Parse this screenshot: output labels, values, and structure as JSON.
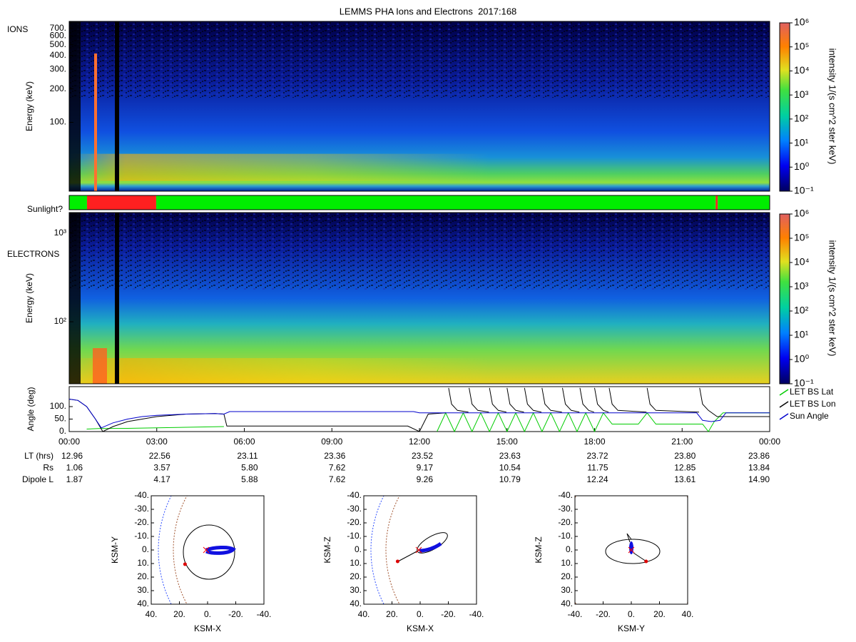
{
  "title": "LEMMS PHA Ions and Electrons  2017:168",
  "chart_data": [
    {
      "type": "spectrogram",
      "panel_label": "IONS",
      "ylabel": "Energy (keV)",
      "ylog": true,
      "ylim": [
        24,
        810
      ],
      "yticks": [
        {
          "value": 100,
          "label": "100."
        },
        {
          "value": 200,
          "label": "200."
        },
        {
          "value": 300,
          "label": "300."
        },
        {
          "value": 400,
          "label": "400."
        },
        {
          "value": 500,
          "label": "500."
        },
        {
          "value": 600,
          "label": "600."
        },
        {
          "value": 700,
          "label": "700."
        }
      ],
      "colorbar": {
        "label": "intensity 1/(s cm^2 ster keV)",
        "zlog": true,
        "zlim": [
          0.1,
          1000000
        ],
        "zticks": [
          {
            "value": 0.1,
            "label": "10⁻¹"
          },
          {
            "value": 1,
            "label": "10⁰"
          },
          {
            "value": 10,
            "label": "10¹"
          },
          {
            "value": 100,
            "label": "10²"
          },
          {
            "value": 1000,
            "label": "10³"
          },
          {
            "value": 10000,
            "label": "10⁴"
          },
          {
            "value": 100000,
            "label": "10⁵"
          },
          {
            "value": 1000000,
            "label": "10⁶"
          }
        ]
      }
    },
    {
      "type": "timeline",
      "label": "Sunlight?",
      "xlim": [
        0,
        24
      ],
      "segments": [
        {
          "x": [
            0,
            0.61
          ],
          "color": "#00ee00"
        },
        {
          "x": [
            0.61,
            2.98
          ],
          "color": "#ff2020"
        },
        {
          "x": [
            2.98,
            22.15
          ],
          "color": "#00ee00"
        },
        {
          "x": [
            22.15,
            22.22
          ],
          "color": "#ff2020"
        },
        {
          "x": [
            22.22,
            24
          ],
          "color": "#00ee00"
        }
      ]
    },
    {
      "type": "spectrogram",
      "panel_label": "ELECTRONS",
      "ylabel": "Energy (keV)",
      "ylog": true,
      "ylim": [
        20,
        1700
      ],
      "yticks": [
        {
          "value": 100,
          "label": "10²"
        },
        {
          "value": 1000,
          "label": "10³"
        }
      ],
      "colorbar": {
        "label": "intensity 1/(s cm^2 ster keV)",
        "zlog": true,
        "zlim": [
          0.1,
          1000000
        ],
        "zticks": [
          {
            "value": 0.1,
            "label": "10⁻¹"
          },
          {
            "value": 1,
            "label": "10⁰"
          },
          {
            "value": 10,
            "label": "10¹"
          },
          {
            "value": 100,
            "label": "10²"
          },
          {
            "value": 1000,
            "label": "10³"
          },
          {
            "value": 10000,
            "label": "10⁴"
          },
          {
            "value": 100000,
            "label": "10⁵"
          },
          {
            "value": 1000000,
            "label": "10⁶"
          }
        ]
      }
    },
    {
      "type": "line",
      "ylabel": "Angle (deg)",
      "xlim": [
        0,
        24
      ],
      "ylim": [
        0,
        180
      ],
      "legend": "right",
      "yticks": [
        {
          "value": 0,
          "label": "0."
        },
        {
          "value": 50,
          "label": "50."
        },
        {
          "value": 100,
          "label": "100."
        }
      ],
      "xticks": [
        {
          "value": 0,
          "label": "00:00"
        },
        {
          "value": 3,
          "label": "03:00"
        },
        {
          "value": 6,
          "label": "06:00"
        },
        {
          "value": 9,
          "label": "09:00"
        },
        {
          "value": 12,
          "label": "12:00"
        },
        {
          "value": 15,
          "label": "15:00"
        },
        {
          "value": 18,
          "label": "18:00"
        },
        {
          "value": 21,
          "label": "21:00"
        },
        {
          "value": 24,
          "label": "00:00"
        }
      ],
      "series": [
        {
          "name": "LET BS Lat",
          "color": "#00cc00",
          "x": [
            0.6,
            1,
            2,
            3,
            4,
            5.3,
            5.31,
            12.6,
            12.9,
            13.2,
            13.5,
            13.8,
            14.1,
            14.4,
            14.7,
            15.0,
            15.3,
            15.6,
            15.9,
            16.2,
            16.5,
            16.8,
            17.1,
            17.4,
            17.7,
            18.0,
            18.3,
            18.6,
            19.5,
            19.8,
            20.1,
            20.4,
            21.7,
            21.9,
            22.1,
            22.4,
            24
          ],
          "values": [
            10,
            12,
            13,
            15,
            17,
            20,
            null,
            0,
            75,
            0,
            75,
            0,
            75,
            0,
            75,
            0,
            75,
            0,
            75,
            0,
            75,
            0,
            75,
            0,
            75,
            0,
            75,
            30,
            30,
            75,
            30,
            30,
            30,
            0,
            40,
            75,
            75
          ]
        },
        {
          "name": "LET BS Lon",
          "color": "#000000",
          "x": [
            0,
            0.3,
            0.6,
            0.9,
            1.15,
            1.5,
            2,
            3,
            4,
            5,
            5.3,
            5.4,
            11.6,
            12.0,
            12.3,
            12.9,
            12.95,
            13.0,
            13.1,
            13.3,
            13.68,
            13.69,
            13.7,
            13.8,
            14.0,
            14.38,
            14.39,
            14.4,
            14.5,
            14.7,
            14.98,
            14.99,
            15.0,
            15.1,
            15.3,
            15.58,
            15.59,
            15.6,
            15.7,
            15.9,
            16.18,
            16.19,
            16.2,
            16.3,
            16.5,
            16.88,
            16.89,
            16.9,
            17.0,
            17.2,
            17.48,
            17.49,
            17.5,
            17.6,
            17.8,
            17.98,
            17.99,
            18.0,
            18.1,
            18.3,
            18.48,
            18.49,
            18.5,
            18.6,
            18.8,
            19.78,
            19.79,
            19.8,
            19.9,
            20.1,
            21.58,
            21.59,
            21.6,
            21.7,
            21.9,
            22.2,
            24
          ],
          "values": [
            130,
            125,
            100,
            50,
            0,
            20,
            40,
            60,
            70,
            72,
            70,
            22,
            22,
            0,
            70,
            75,
            null,
            175,
            110,
            85,
            78,
            null,
            175,
            110,
            85,
            78,
            null,
            175,
            110,
            85,
            78,
            null,
            175,
            110,
            85,
            78,
            null,
            175,
            110,
            85,
            78,
            null,
            175,
            110,
            85,
            78,
            null,
            175,
            110,
            85,
            78,
            null,
            175,
            110,
            85,
            78,
            null,
            175,
            110,
            85,
            78,
            null,
            175,
            110,
            85,
            78,
            null,
            175,
            110,
            85,
            78,
            null,
            175,
            110,
            85,
            60,
            60
          ]
        },
        {
          "name": "Sun Angle",
          "color": "#0000cc",
          "x": [
            0,
            0.3,
            0.6,
            0.9,
            1.1,
            1.5,
            2,
            2.5,
            3,
            4,
            5,
            5.3,
            5.5,
            8,
            11.8,
            12,
            16,
            21.5,
            21.7,
            22,
            22.3,
            22.5,
            24
          ],
          "values": [
            130,
            125,
            100,
            50,
            15,
            35,
            50,
            60,
            65,
            70,
            72,
            70,
            80,
            80,
            80,
            75,
            75,
            75,
            45,
            40,
            45,
            75,
            75
          ]
        }
      ],
      "ephemeris": {
        "rows": [
          {
            "label": "LT (hrs)",
            "values": [
              "12.96",
              "22.56",
              "23.11",
              "23.36",
              "23.52",
              "23.63",
              "23.72",
              "23.80",
              "23.86"
            ]
          },
          {
            "label": "Rs",
            "values": [
              "1.06",
              "3.57",
              "5.80",
              "7.62",
              "9.17",
              "10.54",
              "11.75",
              "12.85",
              "13.84"
            ]
          },
          {
            "label": "Dipole L",
            "values": [
              "1.87",
              "4.17",
              "5.88",
              "7.62",
              "9.26",
              "10.79",
              "12.24",
              "13.61",
              "14.90"
            ]
          }
        ]
      }
    },
    {
      "type": "orbit",
      "xlabel": "KSM-X",
      "ylabel": "KSM-Y",
      "xlim": [
        40,
        -40
      ],
      "ylim": [
        40,
        -40
      ],
      "xticks": [
        {
          "value": 40,
          "label": "40."
        },
        {
          "value": 20,
          "label": "20."
        },
        {
          "value": 0,
          "label": "0."
        },
        {
          "value": -20,
          "label": "-20."
        },
        {
          "value": -40,
          "label": "-40."
        }
      ],
      "yticks": [
        {
          "value": -40,
          "label": "-40."
        },
        {
          "value": -30,
          "label": "-30."
        },
        {
          "value": -20,
          "label": "-20."
        },
        {
          "value": -10,
          "label": "-10."
        },
        {
          "value": 0,
          "label": "0."
        },
        {
          "value": 10,
          "label": "10."
        },
        {
          "value": 20,
          "label": "20."
        },
        {
          "value": 30,
          "label": "30."
        },
        {
          "value": 40,
          "label": "40."
        }
      ],
      "spacecraft": {
        "x": 16,
        "y": 10.5,
        "color": "#dd0000"
      }
    },
    {
      "type": "orbit",
      "xlabel": "KSM-X",
      "ylabel": "KSM-Z",
      "xlim": [
        40,
        -40
      ],
      "ylim": [
        40,
        -40
      ],
      "xticks": [
        {
          "value": 40,
          "label": "40."
        },
        {
          "value": 20,
          "label": "20."
        },
        {
          "value": 0,
          "label": "0."
        },
        {
          "value": -20,
          "label": "-20."
        },
        {
          "value": -40,
          "label": "-40."
        }
      ],
      "yticks": [
        {
          "value": -40,
          "label": "-40."
        },
        {
          "value": -30,
          "label": "-30."
        },
        {
          "value": -20,
          "label": "-20."
        },
        {
          "value": -10,
          "label": "-10."
        },
        {
          "value": 0,
          "label": "0."
        },
        {
          "value": 10,
          "label": "10."
        },
        {
          "value": 20,
          "label": "20."
        },
        {
          "value": 30,
          "label": "30."
        },
        {
          "value": 40,
          "label": "40."
        }
      ],
      "spacecraft": {
        "x": 16,
        "y": 8.4,
        "color": "#dd0000"
      }
    },
    {
      "type": "orbit",
      "xlabel": "KSM-Y",
      "ylabel": "KSM-Z",
      "xlim": [
        -40,
        40
      ],
      "ylim": [
        40,
        -40
      ],
      "xticks": [
        {
          "value": -40,
          "label": "-40."
        },
        {
          "value": -20,
          "label": "-20."
        },
        {
          "value": 0,
          "label": "0."
        },
        {
          "value": 20,
          "label": "20."
        },
        {
          "value": 40,
          "label": "40."
        }
      ],
      "yticks": [
        {
          "value": -40,
          "label": "-40."
        },
        {
          "value": -30,
          "label": "-30."
        },
        {
          "value": -20,
          "label": "-20."
        },
        {
          "value": -10,
          "label": "-10."
        },
        {
          "value": 0,
          "label": "0."
        },
        {
          "value": 10,
          "label": "10."
        },
        {
          "value": 20,
          "label": "20."
        },
        {
          "value": 30,
          "label": "30."
        },
        {
          "value": 40,
          "label": "40."
        }
      ],
      "spacecraft": {
        "x": 10.5,
        "y": 8.4,
        "color": "#dd0000"
      }
    }
  ]
}
